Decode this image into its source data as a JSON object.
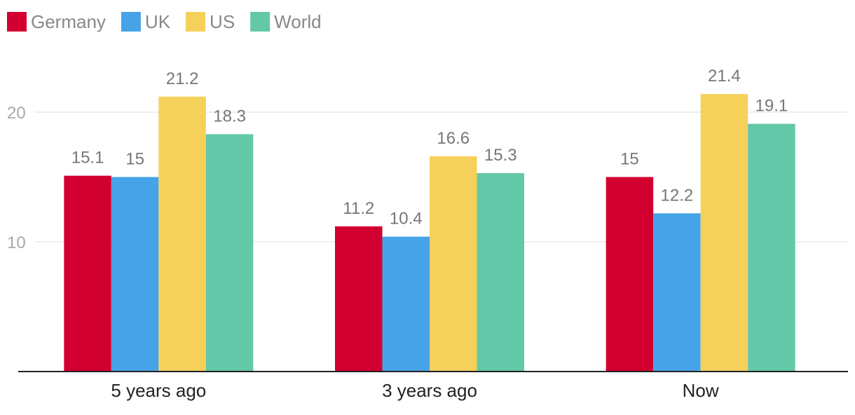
{
  "chart_data": {
    "type": "bar",
    "categories": [
      "5 years ago",
      "3 years ago",
      "Now"
    ],
    "series": [
      {
        "name": "Germany",
        "color": "#d20030",
        "values": [
          15.1,
          11.2,
          15
        ]
      },
      {
        "name": "UK",
        "color": "#47a3e8",
        "values": [
          15,
          10.4,
          12.2
        ]
      },
      {
        "name": "US",
        "color": "#f5d15c",
        "values": [
          21.2,
          16.6,
          21.4
        ]
      },
      {
        "name": "World",
        "color": "#63c8a8",
        "values": [
          18.3,
          15.3,
          19.1
        ]
      }
    ],
    "value_labels": [
      [
        "15.1",
        "11.2",
        "15"
      ],
      [
        "15",
        "10.4",
        "12.2"
      ],
      [
        "21.2",
        "16.6",
        "21.4"
      ],
      [
        "18.3",
        "15.3",
        "19.1"
      ]
    ],
    "yticks": [
      10,
      20
    ],
    "ytick_labels": [
      "10",
      "20"
    ],
    "ylim": [
      0,
      25.6
    ],
    "grid": true,
    "legend_position": "top-left",
    "title": "",
    "xlabel": "",
    "ylabel": ""
  }
}
